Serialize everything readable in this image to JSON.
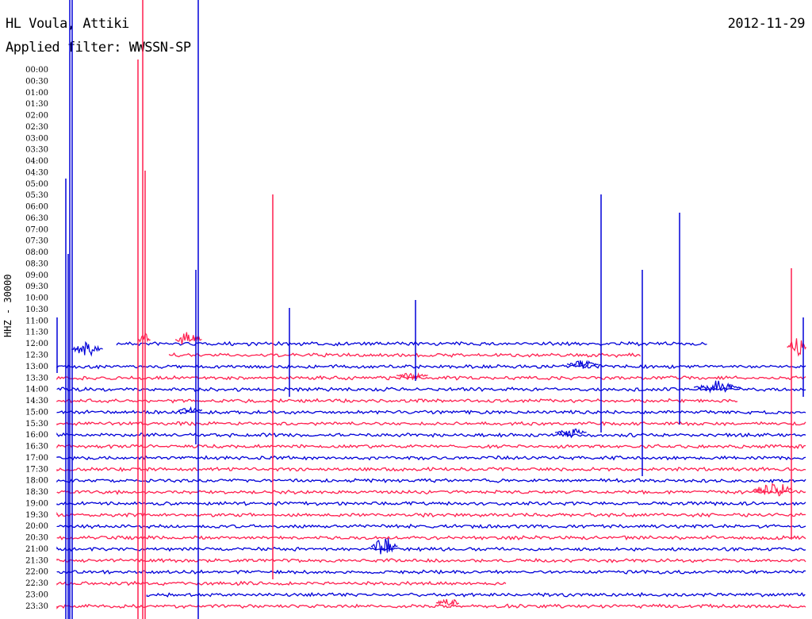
{
  "header": {
    "station": "HL Voula, Attiki",
    "filter": "Applied filter: WWSSN-SP",
    "date": "2012-11-29"
  },
  "channel_label": "HHZ - 30000",
  "colors": {
    "blue": "#0000d8",
    "red": "#ff1f4f"
  },
  "chart_data": {
    "type": "line",
    "description_of_marks": "helicorder trace rows",
    "tick_labels": [
      "00:00",
      "00:30",
      "01:00",
      "01:30",
      "02:00",
      "02:30",
      "03:00",
      "03:30",
      "04:00",
      "04:30",
      "05:00",
      "05:30",
      "06:00",
      "06:30",
      "07:00",
      "07:30",
      "08:00",
      "08:30",
      "09:00",
      "09:30",
      "10:00",
      "10:30",
      "11:00",
      "11:30",
      "12:00",
      "12:30",
      "13:00",
      "13:30",
      "14:00",
      "14:30",
      "15:00",
      "15:30",
      "16:00",
      "16:30",
      "17:00",
      "17:30",
      "18:00",
      "18:30",
      "19:00",
      "19:30",
      "20:00",
      "20:30",
      "21:00",
      "21:30",
      "22:00",
      "22:30",
      "23:00",
      "23:30"
    ],
    "rows": [
      {
        "t": "12:00",
        "color": "blue",
        "x0": 0.08,
        "x1": 0.87
      },
      {
        "t": "12:30",
        "color": "red",
        "x0": 0.15,
        "x1": 0.78
      },
      {
        "t": "13:00",
        "color": "blue",
        "x0": 0.0,
        "x1": 1.0
      },
      {
        "t": "13:30",
        "color": "red",
        "x0": 0.0,
        "x1": 1.0
      },
      {
        "t": "14:00",
        "color": "blue",
        "x0": 0.0,
        "x1": 1.0
      },
      {
        "t": "14:30",
        "color": "red",
        "x0": 0.0,
        "x1": 0.91
      },
      {
        "t": "15:00",
        "color": "blue",
        "x0": 0.0,
        "x1": 1.0
      },
      {
        "t": "15:30",
        "color": "red",
        "x0": 0.0,
        "x1": 1.0
      },
      {
        "t": "16:00",
        "color": "blue",
        "x0": 0.0,
        "x1": 1.0
      },
      {
        "t": "16:30",
        "color": "red",
        "x0": 0.0,
        "x1": 1.0
      },
      {
        "t": "17:00",
        "color": "blue",
        "x0": 0.0,
        "x1": 1.0
      },
      {
        "t": "17:30",
        "color": "red",
        "x0": 0.0,
        "x1": 1.0
      },
      {
        "t": "18:00",
        "color": "blue",
        "x0": 0.0,
        "x1": 1.0
      },
      {
        "t": "18:30",
        "color": "red",
        "x0": 0.0,
        "x1": 1.0
      },
      {
        "t": "19:00",
        "color": "blue",
        "x0": 0.0,
        "x1": 1.0
      },
      {
        "t": "19:30",
        "color": "red",
        "x0": 0.0,
        "x1": 1.0
      },
      {
        "t": "20:00",
        "color": "blue",
        "x0": 0.0,
        "x1": 1.0
      },
      {
        "t": "20:30",
        "color": "red",
        "x0": 0.0,
        "x1": 1.0
      },
      {
        "t": "21:00",
        "color": "blue",
        "x0": 0.0,
        "x1": 1.0
      },
      {
        "t": "21:30",
        "color": "red",
        "x0": 0.0,
        "x1": 1.0
      },
      {
        "t": "22:00",
        "color": "blue",
        "x0": 0.0,
        "x1": 1.0
      },
      {
        "t": "22:30",
        "color": "red",
        "x0": 0.0,
        "x1": 0.6
      },
      {
        "t": "23:00",
        "color": "blue",
        "x0": 0.12,
        "x1": 1.0
      },
      {
        "t": "23:30",
        "color": "red",
        "x0": 0.0,
        "x1": 1.0
      }
    ]
  }
}
